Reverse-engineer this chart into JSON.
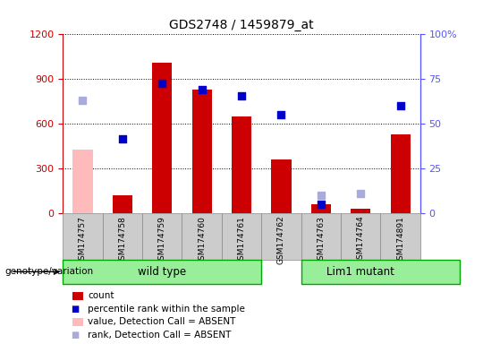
{
  "title": "GDS2748 / 1459879_at",
  "samples": [
    "GSM174757",
    "GSM174758",
    "GSM174759",
    "GSM174760",
    "GSM174761",
    "GSM174762",
    "GSM174763",
    "GSM174764",
    "GSM174891"
  ],
  "count_values": [
    null,
    120,
    1010,
    830,
    650,
    360,
    60,
    30,
    530
  ],
  "count_absent": [
    430,
    null,
    null,
    null,
    null,
    null,
    null,
    null,
    null
  ],
  "percentile_values": [
    null,
    500,
    870,
    830,
    790,
    660,
    60,
    null,
    720
  ],
  "percentile_absent": [
    760,
    null,
    null,
    null,
    null,
    null,
    120,
    130,
    null
  ],
  "ylim_left": [
    0,
    1200
  ],
  "ylim_right": [
    0,
    100
  ],
  "yticks_left": [
    0,
    300,
    600,
    900,
    1200
  ],
  "yticks_right": [
    0,
    25,
    50,
    75,
    100
  ],
  "ytick_labels_left": [
    "0",
    "300",
    "600",
    "900",
    "1200"
  ],
  "ytick_labels_right": [
    "0",
    "25",
    "50",
    "75",
    "100%"
  ],
  "wild_type_count": 5,
  "lim1_mutant_count": 4,
  "bar_color_present": "#cc0000",
  "bar_color_absent": "#ffbbbb",
  "scatter_color_present": "#0000cc",
  "scatter_color_absent": "#aaaadd",
  "left_color": "#cc0000",
  "right_color": "#5555ff",
  "group_bg": "#99ee99",
  "group_border": "#00aa00",
  "xticklabel_bg": "#cccccc",
  "xticklabel_border": "#888888",
  "legend_items": [
    {
      "color": "#cc0000",
      "label": "count",
      "shape": "rect"
    },
    {
      "color": "#0000cc",
      "label": "percentile rank within the sample",
      "shape": "square"
    },
    {
      "color": "#ffbbbb",
      "label": "value, Detection Call = ABSENT",
      "shape": "rect"
    },
    {
      "color": "#aaaadd",
      "label": "rank, Detection Call = ABSENT",
      "shape": "square"
    }
  ]
}
